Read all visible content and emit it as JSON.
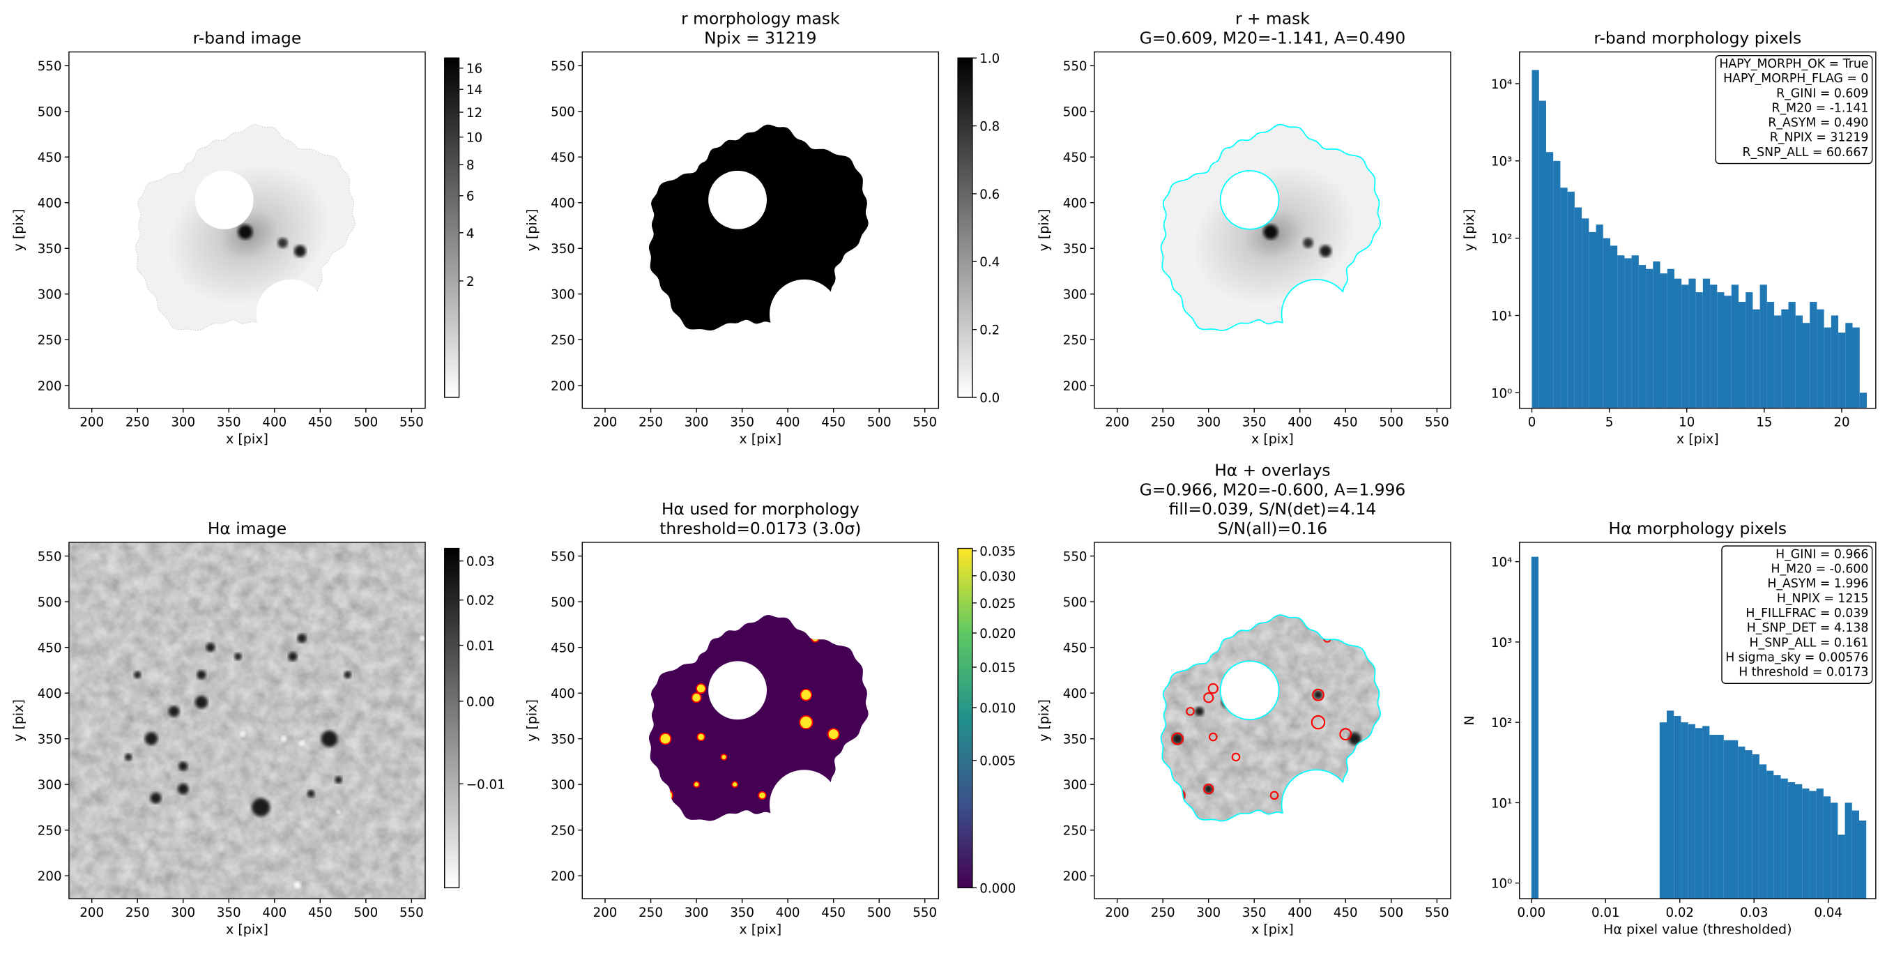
{
  "chart_data": [
    {
      "type": "image",
      "title": [
        "r-band image"
      ],
      "xlabel": "x [pix]",
      "ylabel": "y [pix]",
      "xlim": [
        175,
        565
      ],
      "ylim": [
        175,
        565
      ],
      "xticks": [
        200,
        250,
        300,
        350,
        400,
        450,
        500,
        550
      ],
      "yticks": [
        200,
        250,
        300,
        350,
        400,
        450,
        500,
        550
      ],
      "cmap": "gray_r",
      "colorbar": {
        "scale": "sqrt",
        "lim": [
          0,
          17
        ],
        "ticks": [
          2,
          4,
          6,
          8,
          10,
          12,
          14,
          16
        ]
      }
    },
    {
      "type": "image",
      "title": [
        "r morphology mask",
        "Npix = 31219"
      ],
      "xlabel": "x [pix]",
      "ylabel": "y [pix]",
      "xlim": [
        175,
        565
      ],
      "ylim": [
        175,
        565
      ],
      "xticks": [
        200,
        250,
        300,
        350,
        400,
        450,
        500,
        550
      ],
      "yticks": [
        200,
        250,
        300,
        350,
        400,
        450,
        500,
        550
      ],
      "cmap": "gray_r",
      "colorbar": {
        "scale": "linear",
        "lim": [
          0,
          1
        ],
        "ticks": [
          {
            "value": 0,
            "label": "0.0"
          },
          0.2,
          0.4,
          0.6,
          0.8,
          {
            "value": 1,
            "label": "1.0"
          }
        ]
      }
    },
    {
      "type": "image",
      "title": [
        "r + mask",
        "G=0.609, M20=-1.141, A=0.490"
      ],
      "xlabel": "x [pix]",
      "ylabel": "y [pix]",
      "xlim": [
        175,
        565
      ],
      "ylim": [
        175,
        565
      ],
      "xticks": [
        200,
        250,
        300,
        350,
        400,
        450,
        500,
        550
      ],
      "yticks": [
        200,
        250,
        300,
        350,
        400,
        450,
        500,
        550
      ],
      "cmap": "gray_r",
      "contour_color": "cyan"
    },
    {
      "type": "histogram",
      "title": [
        "r-band morphology pixels"
      ],
      "xlabel": "x [pix]",
      "ylabel": "y [pix]",
      "xlim": [
        -0.8,
        22.2
      ],
      "ylim": [
        0.63,
        25700
      ],
      "ylog": true,
      "color": "#1f77b4",
      "xticks": [
        0,
        5,
        10,
        15,
        20
      ],
      "yticks": [
        {
          "value": 1,
          "label": "10⁰"
        },
        {
          "value": 10,
          "label": "10¹"
        },
        {
          "value": 100,
          "label": "10²"
        },
        {
          "value": 1000,
          "label": "10³"
        },
        {
          "value": 10000,
          "label": "10⁴"
        }
      ],
      "bins": [
        0,
        0.46,
        0.92,
        1.38,
        1.84,
        2.3,
        2.76,
        3.22,
        3.68,
        4.14,
        4.6,
        5.06,
        5.52,
        5.98,
        6.44,
        6.9,
        7.36,
        7.82,
        8.28,
        8.74,
        9.2,
        9.66,
        10.12,
        10.58,
        11.04,
        11.5,
        11.96,
        12.42,
        12.88,
        13.34,
        13.8,
        14.26,
        14.72,
        15.18,
        15.64,
        16.1,
        16.56,
        17.02,
        17.48,
        17.94,
        18.4,
        18.86,
        19.32,
        19.78,
        20.24,
        20.7,
        21.16,
        21.62
      ],
      "counts": [
        15000,
        6000,
        1300,
        1000,
        450,
        400,
        250,
        180,
        120,
        150,
        100,
        80,
        60,
        55,
        60,
        45,
        40,
        50,
        35,
        40,
        30,
        25,
        30,
        20,
        30,
        25,
        20,
        18,
        25,
        15,
        20,
        12,
        25,
        15,
        10,
        12,
        15,
        10,
        8,
        15,
        12,
        7,
        10,
        6,
        8,
        7,
        1
      ],
      "textbox": [
        "HAPY_MORPH_OK = True",
        "HAPY_MORPH_FLAG = 0",
        "R_GINI = 0.609",
        "R_M20 = -1.141",
        "R_ASYM = 0.490",
        "R_NPIX = 31219",
        "R_SNP_ALL = 60.667"
      ]
    },
    {
      "type": "image",
      "title": [
        "Hα image"
      ],
      "xlabel": "x [pix]",
      "ylabel": "y [pix]",
      "xlim": [
        175,
        565
      ],
      "ylim": [
        175,
        565
      ],
      "xticks": [
        200,
        250,
        300,
        350,
        400,
        450,
        500,
        550
      ],
      "yticks": [
        200,
        250,
        300,
        350,
        400,
        450,
        500,
        550
      ],
      "cmap": "gray_r",
      "colorbar": {
        "scale": "sqrt",
        "lim": [
          -0.0145,
          0.0335
        ],
        "ticks": [
          {
            "value": -0.01,
            "label": "−0.01"
          },
          {
            "value": 0,
            "label": "0.00"
          },
          0.01,
          0.02,
          0.03
        ]
      }
    },
    {
      "type": "image",
      "title": [
        "Hα used for morphology",
        "threshold=0.0173 (3.0σ)"
      ],
      "xlabel": "x [pix]",
      "ylabel": "y [pix]",
      "xlim": [
        175,
        565
      ],
      "ylim": [
        175,
        565
      ],
      "xticks": [
        200,
        250,
        300,
        350,
        400,
        450,
        500,
        550
      ],
      "yticks": [
        200,
        250,
        300,
        350,
        400,
        450,
        500,
        550
      ],
      "cmap": "viridis",
      "overlay_color": "red",
      "colorbar": {
        "scale": "sqrt",
        "lim": [
          0,
          0.0355
        ],
        "ticks": [
          {
            "value": 0,
            "label": "0.000"
          },
          0.005,
          {
            "value": 0.01,
            "label": "0.010"
          },
          0.015,
          {
            "value": 0.02,
            "label": "0.020"
          },
          0.025,
          {
            "value": 0.03,
            "label": "0.030"
          },
          0.035
        ]
      }
    },
    {
      "type": "image",
      "title": [
        "Hα + overlays",
        "G=0.966, M20=-0.600, A=1.996",
        "fill=0.039, S/N(det)=4.14",
        "S/N(all)=0.16"
      ],
      "xlabel": "x [pix]",
      "ylabel": "y [pix]",
      "xlim": [
        175,
        565
      ],
      "ylim": [
        175,
        565
      ],
      "xticks": [
        200,
        250,
        300,
        350,
        400,
        450,
        500,
        550
      ],
      "yticks": [
        200,
        250,
        300,
        350,
        400,
        450,
        500,
        550
      ],
      "cmap": "gray_r",
      "contour_color": "cyan",
      "overlay_color": "red"
    },
    {
      "type": "histogram",
      "title": [
        "Hα morphology pixels"
      ],
      "xlabel": "Hα pixel value (thresholded)",
      "ylabel": "N",
      "xlim": [
        -0.0016,
        0.0464
      ],
      "ylim": [
        0.64,
        17400
      ],
      "ylog": true,
      "color": "#1f77b4",
      "xticks": [
        {
          "value": 0,
          "label": "0.00"
        },
        0.01,
        0.02,
        0.03,
        0.04
      ],
      "yticks": [
        {
          "value": 1,
          "label": "10⁰"
        },
        {
          "value": 10,
          "label": "10¹"
        },
        {
          "value": 100,
          "label": "10²"
        },
        {
          "value": 1000,
          "label": "10³"
        },
        {
          "value": 10000,
          "label": "10⁴"
        }
      ],
      "bins": [
        0,
        0.00096,
        0.00192,
        0.00288,
        0.00384,
        0.0048,
        0.00576,
        0.00672,
        0.00768,
        0.00864,
        0.0096,
        0.01056,
        0.01152,
        0.01248,
        0.01344,
        0.0144,
        0.01536,
        0.01632,
        0.01728,
        0.01824,
        0.0192,
        0.02016,
        0.02112,
        0.02208,
        0.02304,
        0.024,
        0.02496,
        0.02592,
        0.02688,
        0.02784,
        0.0288,
        0.02976,
        0.03072,
        0.03168,
        0.03264,
        0.0336,
        0.03456,
        0.03552,
        0.03648,
        0.03744,
        0.0384,
        0.03936,
        0.04032,
        0.04128,
        0.04224,
        0.0432,
        0.04416,
        0.04512
      ],
      "counts": [
        11500,
        0,
        0,
        0,
        0,
        0,
        0,
        0,
        0,
        0,
        0,
        0,
        0,
        0,
        0,
        0,
        0,
        0,
        100,
        140,
        120,
        100,
        95,
        85,
        90,
        70,
        70,
        60,
        60,
        50,
        45,
        40,
        30,
        25,
        22,
        20,
        18,
        17,
        15,
        14,
        15,
        12,
        10,
        4,
        10,
        8,
        6
      ],
      "textbox": [
        "H_GINI = 0.966",
        "H_M20 = -0.600",
        "H_ASYM = 1.996",
        "H_NPIX = 1215",
        "H_FILLFRAC = 0.039",
        "H_SNP_DET = 4.138",
        "H_SNP_ALL = 0.161",
        "H sigma_sky = 0.00576",
        "H threshold = 0.0173"
      ]
    }
  ]
}
